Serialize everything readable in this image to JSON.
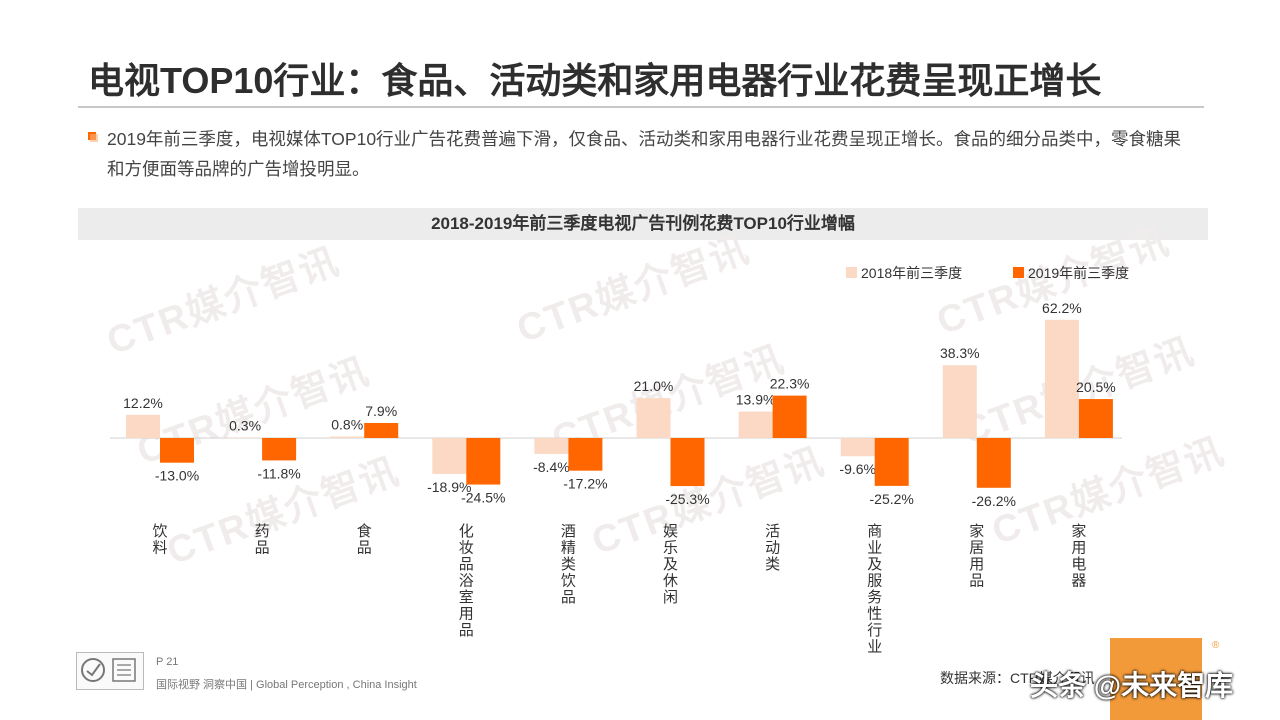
{
  "page": {
    "title": "电视TOP10行业：食品、活动类和家用电器行业花费呈现正增长",
    "description": "2019年前三季度，电视媒体TOP10行业广告花费普遍下滑，仅食品、活动类和家用电器行业花费呈现正增长。食品的细分品类中，零食糖果和方便面等品牌的广告增投明显。",
    "watermark_text": "CTR媒介智讯",
    "footer": {
      "page_number": "P 21",
      "tagline": "国际视野  洞察中国 | Global Perception , China Insight",
      "source": "数据来源：CTR媒介智讯",
      "overlay_text": "头条 @未来智库"
    },
    "colors": {
      "accent": "#ff6600",
      "light": "#fbd9c4",
      "header_bg": "#ececec"
    }
  },
  "chart_data": {
    "type": "bar",
    "title": "2018-2019年前三季度电视广告刊例花费TOP10行业增幅",
    "categories": [
      "饮料",
      "药品",
      "食品",
      "化妆品浴室用品",
      "酒精类饮品",
      "娱乐及休闲",
      "活动类",
      "商业及服务性行业",
      "家居用品",
      "家用电器"
    ],
    "series": [
      {
        "name": "2018年前三季度",
        "color": "#fbd9c4",
        "values": [
          12.2,
          0.3,
          0.8,
          -18.9,
          -8.4,
          21.0,
          13.9,
          -9.6,
          38.3,
          62.2
        ],
        "labels": [
          "12.2%",
          "0.3%",
          "0.8%",
          "-18.9%",
          "-8.4%",
          "21.0%",
          "13.9%",
          "-9.6%",
          "38.3%",
          "62.2%"
        ]
      },
      {
        "name": "2019年前三季度",
        "color": "#ff6600",
        "values": [
          -13.0,
          -11.8,
          7.9,
          -24.5,
          -17.2,
          -25.3,
          22.3,
          -25.2,
          -26.2,
          20.5
        ],
        "labels": [
          "-13.0%",
          "-11.8%",
          "7.9%",
          "-24.5%",
          "-17.2%",
          "-25.3%",
          "22.3%",
          "-25.2%",
          "-26.2%",
          "20.5%"
        ]
      }
    ],
    "unit": "%",
    "legend": "top-right",
    "grid": false
  }
}
